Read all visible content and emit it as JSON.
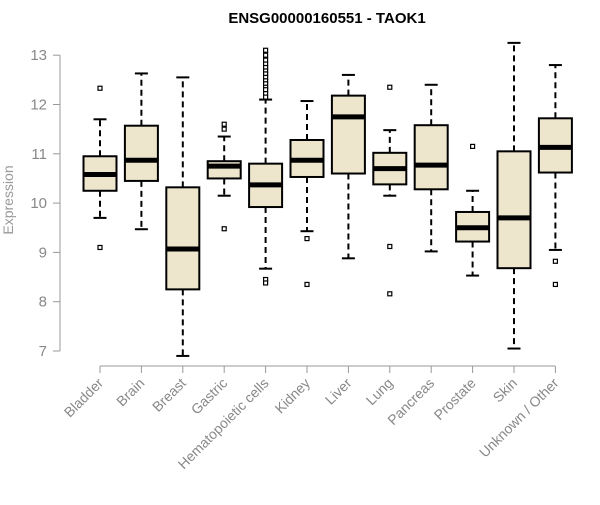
{
  "chart_data": {
    "type": "boxplot",
    "title": "ENSG00000160551 - TAOK1",
    "xlabel": "",
    "ylabel": "Expression",
    "ylim": [
      6.8,
      13.2
    ],
    "yticks": [
      7,
      8,
      9,
      10,
      11,
      12,
      13
    ],
    "box_fill": "#ede6cc",
    "box_stroke": "#000000",
    "axis_color": "#999999",
    "categories": [
      "Bladder",
      "Brain",
      "Breast",
      "Gastric",
      "Hematopoietic cells",
      "Kidney",
      "Liver",
      "Lung",
      "Pancreas",
      "Prostate",
      "Skin",
      "Unknown / Other"
    ],
    "boxes": [
      {
        "label": "Bladder",
        "whisker_low": 9.7,
        "q1": 10.25,
        "median": 10.58,
        "q3": 10.95,
        "whisker_high": 11.7,
        "outliers": [
          12.33,
          9.1
        ]
      },
      {
        "label": "Brain",
        "whisker_low": 9.47,
        "q1": 10.45,
        "median": 10.87,
        "q3": 11.57,
        "whisker_high": 12.63,
        "outliers": []
      },
      {
        "label": "Breast",
        "whisker_low": 6.9,
        "q1": 8.25,
        "median": 9.07,
        "q3": 10.32,
        "whisker_high": 12.55,
        "outliers": []
      },
      {
        "label": "Gastric",
        "whisker_low": 10.15,
        "q1": 10.5,
        "median": 10.75,
        "q3": 10.85,
        "whisker_high": 11.35,
        "outliers": [
          11.6,
          11.5,
          9.48
        ]
      },
      {
        "label": "Hematopoietic cells",
        "whisker_low": 8.67,
        "q1": 9.92,
        "median": 10.37,
        "q3": 10.8,
        "whisker_high": 12.1,
        "outliers": [
          13.1,
          13.0,
          12.9,
          12.82,
          12.75,
          12.68,
          12.62,
          12.55,
          12.48,
          12.42,
          12.35,
          12.3,
          12.22,
          12.15,
          8.45,
          8.38
        ]
      },
      {
        "label": "Kidney",
        "whisker_low": 9.43,
        "q1": 10.53,
        "median": 10.87,
        "q3": 11.28,
        "whisker_high": 12.07,
        "outliers": [
          9.28,
          8.35
        ]
      },
      {
        "label": "Liver",
        "whisker_low": 8.88,
        "q1": 10.6,
        "median": 11.75,
        "q3": 12.18,
        "whisker_high": 12.6,
        "outliers": []
      },
      {
        "label": "Lung",
        "whisker_low": 10.15,
        "q1": 10.38,
        "median": 10.7,
        "q3": 11.02,
        "whisker_high": 11.48,
        "outliers": [
          12.35,
          9.12,
          8.16
        ]
      },
      {
        "label": "Pancreas",
        "whisker_low": 9.02,
        "q1": 10.28,
        "median": 10.77,
        "q3": 11.58,
        "whisker_high": 12.4,
        "outliers": []
      },
      {
        "label": "Prostate",
        "whisker_low": 8.53,
        "q1": 9.22,
        "median": 9.5,
        "q3": 9.82,
        "whisker_high": 10.25,
        "outliers": [
          11.15
        ]
      },
      {
        "label": "Skin",
        "whisker_low": 7.05,
        "q1": 8.68,
        "median": 9.7,
        "q3": 11.05,
        "whisker_high": 13.25,
        "outliers": []
      },
      {
        "label": "Unknown / Other",
        "whisker_low": 9.05,
        "q1": 10.62,
        "median": 11.13,
        "q3": 11.72,
        "whisker_high": 12.8,
        "outliers": [
          8.82,
          8.35
        ]
      }
    ]
  }
}
